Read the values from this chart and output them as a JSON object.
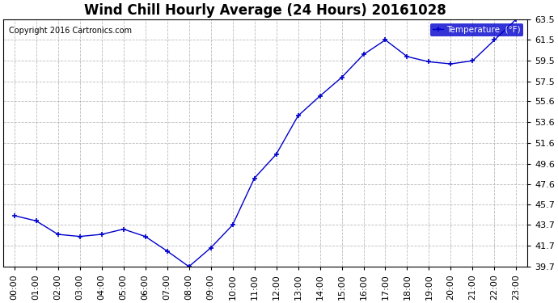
{
  "title": "Wind Chill Hourly Average (24 Hours) 20161028",
  "copyright": "Copyright 2016 Cartronics.com",
  "legend_label": "Temperature  (°F)",
  "hours": [
    "00:00",
    "01:00",
    "02:00",
    "03:00",
    "04:00",
    "05:00",
    "06:00",
    "07:00",
    "08:00",
    "09:00",
    "10:00",
    "11:00",
    "12:00",
    "13:00",
    "14:00",
    "15:00",
    "16:00",
    "17:00",
    "18:00",
    "19:00",
    "20:00",
    "21:00",
    "22:00",
    "23:00"
  ],
  "values": [
    44.6,
    44.1,
    42.8,
    42.6,
    42.8,
    43.3,
    42.6,
    41.2,
    39.7,
    41.5,
    43.7,
    48.2,
    50.5,
    54.2,
    56.1,
    57.9,
    60.1,
    61.5,
    59.9,
    59.4,
    59.2,
    59.5,
    61.5,
    63.5
  ],
  "line_color": "#0000cc",
  "marker": "+",
  "marker_size": 5,
  "ylim_min": 39.7,
  "ylim_max": 63.5,
  "yticks": [
    39.7,
    41.7,
    43.7,
    45.7,
    47.6,
    49.6,
    51.6,
    53.6,
    55.6,
    57.5,
    59.5,
    61.5,
    63.5
  ],
  "background_color": "#ffffff",
  "grid_color": "#aaaaaa",
  "title_fontsize": 12,
  "tick_fontsize": 8,
  "copyright_fontsize": 7,
  "legend_bg": "#0000cc",
  "legend_text_color": "#ffffff",
  "fig_width": 6.9,
  "fig_height": 3.75,
  "dpi": 100
}
